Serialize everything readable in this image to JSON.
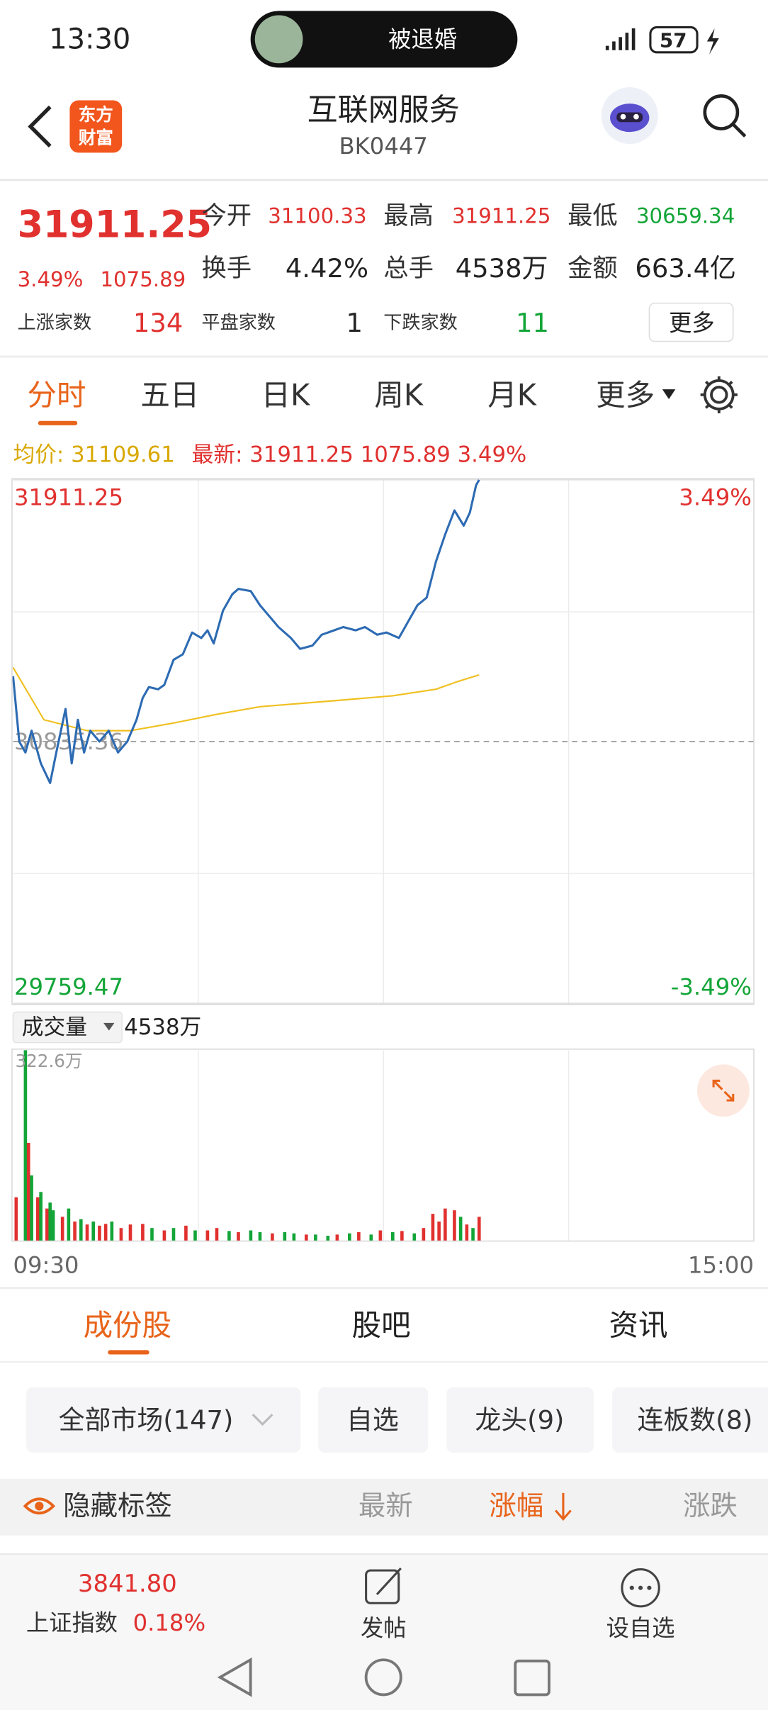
{
  "status_bar": {
    "time": "13:30",
    "notification": "被退婚",
    "battery": "57"
  },
  "header": {
    "logo": [
      "东方",
      "财富"
    ],
    "title": "互联网服务",
    "code": "BK0447"
  },
  "quote": {
    "price": "31911.25",
    "change_pct": "3.49%",
    "change": "1075.89",
    "stats": [
      [
        {
          "label": "今开",
          "value": "31100.33"
        },
        {
          "label": "最高",
          "value": "31911.25"
        },
        {
          "label": "最低",
          "value": "30659.34"
        }
      ],
      [
        {
          "label": "换手",
          "value": "4.42%"
        },
        {
          "label": "总手",
          "value": "4538万"
        },
        {
          "label": "金额",
          "value": "663.4亿"
        }
      ]
    ],
    "breadth": [
      {
        "label": "上涨家数",
        "value": "134"
      },
      {
        "label": "平盘家数",
        "value": "1"
      },
      {
        "label": "下跌家数",
        "value": "11"
      }
    ],
    "more": "更多"
  },
  "period_tabs": [
    "分时",
    "五日",
    "日K",
    "周K",
    "月K",
    "更多"
  ],
  "chart_data": [
    {
      "type": "line",
      "avg_text": "均价: 31109.61",
      "latest_text": "最新: 31911.25 1075.89 3.49%",
      "xlim": [
        0,
        240
      ],
      "ylim": [
        29759.47,
        31911.25
      ],
      "yticks": [
        31911.25,
        30835.36,
        29759.47
      ],
      "ytick_colors": [
        "#e0312f",
        "#9a9a9a",
        "#13a538"
      ],
      "y2lim": [
        -3.49,
        3.49
      ],
      "y2ticks": [
        {
          "value": 3.49,
          "label": "3.49%"
        },
        {
          "value": -3.49,
          "label": "-3.49%"
        }
      ],
      "y2tick_colors": [
        "#e0312f",
        "#13a538"
      ],
      "series": [
        {
          "color": "#2d6bb3",
          "x": [
            0,
            2,
            4,
            6,
            9,
            12,
            14,
            17,
            19,
            21,
            23,
            25,
            28,
            31,
            34,
            37,
            40,
            42,
            44,
            47,
            49,
            52,
            55,
            58,
            61,
            63,
            65,
            68,
            71,
            73,
            77,
            80,
            83,
            86,
            90,
            93,
            97,
            100,
            104,
            107,
            111,
            114,
            118,
            121,
            125,
            128,
            131,
            134,
            137,
            140,
            143,
            146,
            148,
            150,
            151
          ],
          "values": [
            31104.3,
            30835.4,
            30790.5,
            30880.2,
            30745.7,
            30665.0,
            30790.5,
            30969.8,
            30745.7,
            30925.0,
            30790.5,
            30880.2,
            30835.4,
            30880.2,
            30790.5,
            30835.4,
            30925.0,
            31014.7,
            31059.5,
            31050.5,
            31068.5,
            31171.6,
            31194.0,
            31283.7,
            31261.2,
            31292.6,
            31238.8,
            31373.3,
            31440.6,
            31463.0,
            31454.0,
            31395.7,
            31350.9,
            31306.1,
            31261.2,
            31216.4,
            31229.9,
            31274.7,
            31292.6,
            31306.1,
            31292.6,
            31306.1,
            31274.7,
            31283.7,
            31261.2,
            31328.5,
            31395.7,
            31427.1,
            31575.0,
            31687.1,
            31785.7,
            31723.0,
            31776.8,
            31888.9,
            31911.25
          ]
        },
        {
          "color": "#f0c020",
          "x": [
            0,
            10,
            24,
            38,
            52,
            66,
            80,
            102,
            123,
            137,
            144,
            151
          ],
          "values": [
            31140.2,
            30925.0,
            30880.2,
            30880.2,
            30911.6,
            30947.4,
            30978.8,
            31001.2,
            31023.6,
            31050.5,
            31081.9,
            31109.61
          ]
        }
      ]
    },
    {
      "type": "bar",
      "title": "成交量",
      "total": "4538万",
      "xlim": [
        0,
        240
      ],
      "xticks": [
        {
          "value": 0,
          "label": "09:30"
        },
        {
          "value": 240,
          "label": "15:00"
        }
      ],
      "ylim": [
        0,
        322.6
      ],
      "yticks": [
        {
          "value": 322.6,
          "label": "322.6万"
        }
      ],
      "x": [
        1,
        4,
        5,
        6,
        8,
        9,
        11,
        12,
        13,
        16,
        18,
        20,
        22,
        24,
        26,
        28,
        30,
        32,
        35,
        38,
        42,
        45,
        49,
        52,
        56,
        59,
        63,
        66,
        70,
        73,
        77,
        80,
        84,
        88,
        91,
        95,
        98,
        102,
        105,
        109,
        112,
        116,
        119,
        123,
        126,
        130,
        133,
        136,
        138,
        140,
        143,
        145,
        147,
        149,
        151
      ],
      "values": [
        74,
        322.6,
        166,
        111,
        74,
        83,
        55,
        65,
        52,
        41,
        55,
        33,
        37,
        28,
        33,
        26,
        29,
        33,
        22,
        28,
        29,
        22,
        18,
        22,
        26,
        18,
        18,
        22,
        17,
        15,
        18,
        15,
        13,
        15,
        13,
        11,
        11,
        9,
        11,
        13,
        15,
        11,
        18,
        15,
        17,
        13,
        22,
        46,
        33,
        55,
        52,
        41,
        28,
        22,
        41
      ],
      "colors": [
        "#e0312f",
        "#13a538",
        "#e0312f",
        "#13a538",
        "#e0312f",
        "#13a538",
        "#e0312f",
        "#13a538",
        "#13a538",
        "#e0312f",
        "#13a538",
        "#e0312f",
        "#13a538",
        "#e0312f",
        "#13a538",
        "#e0312f",
        "#e0312f",
        "#13a538",
        "#e0312f",
        "#e0312f",
        "#e0312f",
        "#13a538",
        "#e0312f",
        "#13a538",
        "#e0312f",
        "#13a538",
        "#e0312f",
        "#e0312f",
        "#13a538",
        "#e0312f",
        "#13a538",
        "#13a538",
        "#e0312f",
        "#13a538",
        "#13a538",
        "#e0312f",
        "#13a538",
        "#13a538",
        "#e0312f",
        "#13a538",
        "#e0312f",
        "#13a538",
        "#e0312f",
        "#13a538",
        "#e0312f",
        "#13a538",
        "#e0312f",
        "#e0312f",
        "#e0312f",
        "#e0312f",
        "#e0312f",
        "#13a538",
        "#e0312f",
        "#13a538",
        "#e0312f"
      ]
    }
  ],
  "section_tabs": [
    "成份股",
    "股吧",
    "资讯"
  ],
  "filters": [
    "全部市场(147)",
    "自选",
    "龙头(9)",
    "连板数(8)"
  ],
  "columns": {
    "toggle": "隐藏标签",
    "headers": [
      "最新",
      "涨幅",
      "涨跌"
    ]
  },
  "footer": {
    "index_value": "3841.80",
    "index_name": "上证指数",
    "index_change": "0.18%",
    "actions": [
      "发帖",
      "设自选"
    ]
  }
}
